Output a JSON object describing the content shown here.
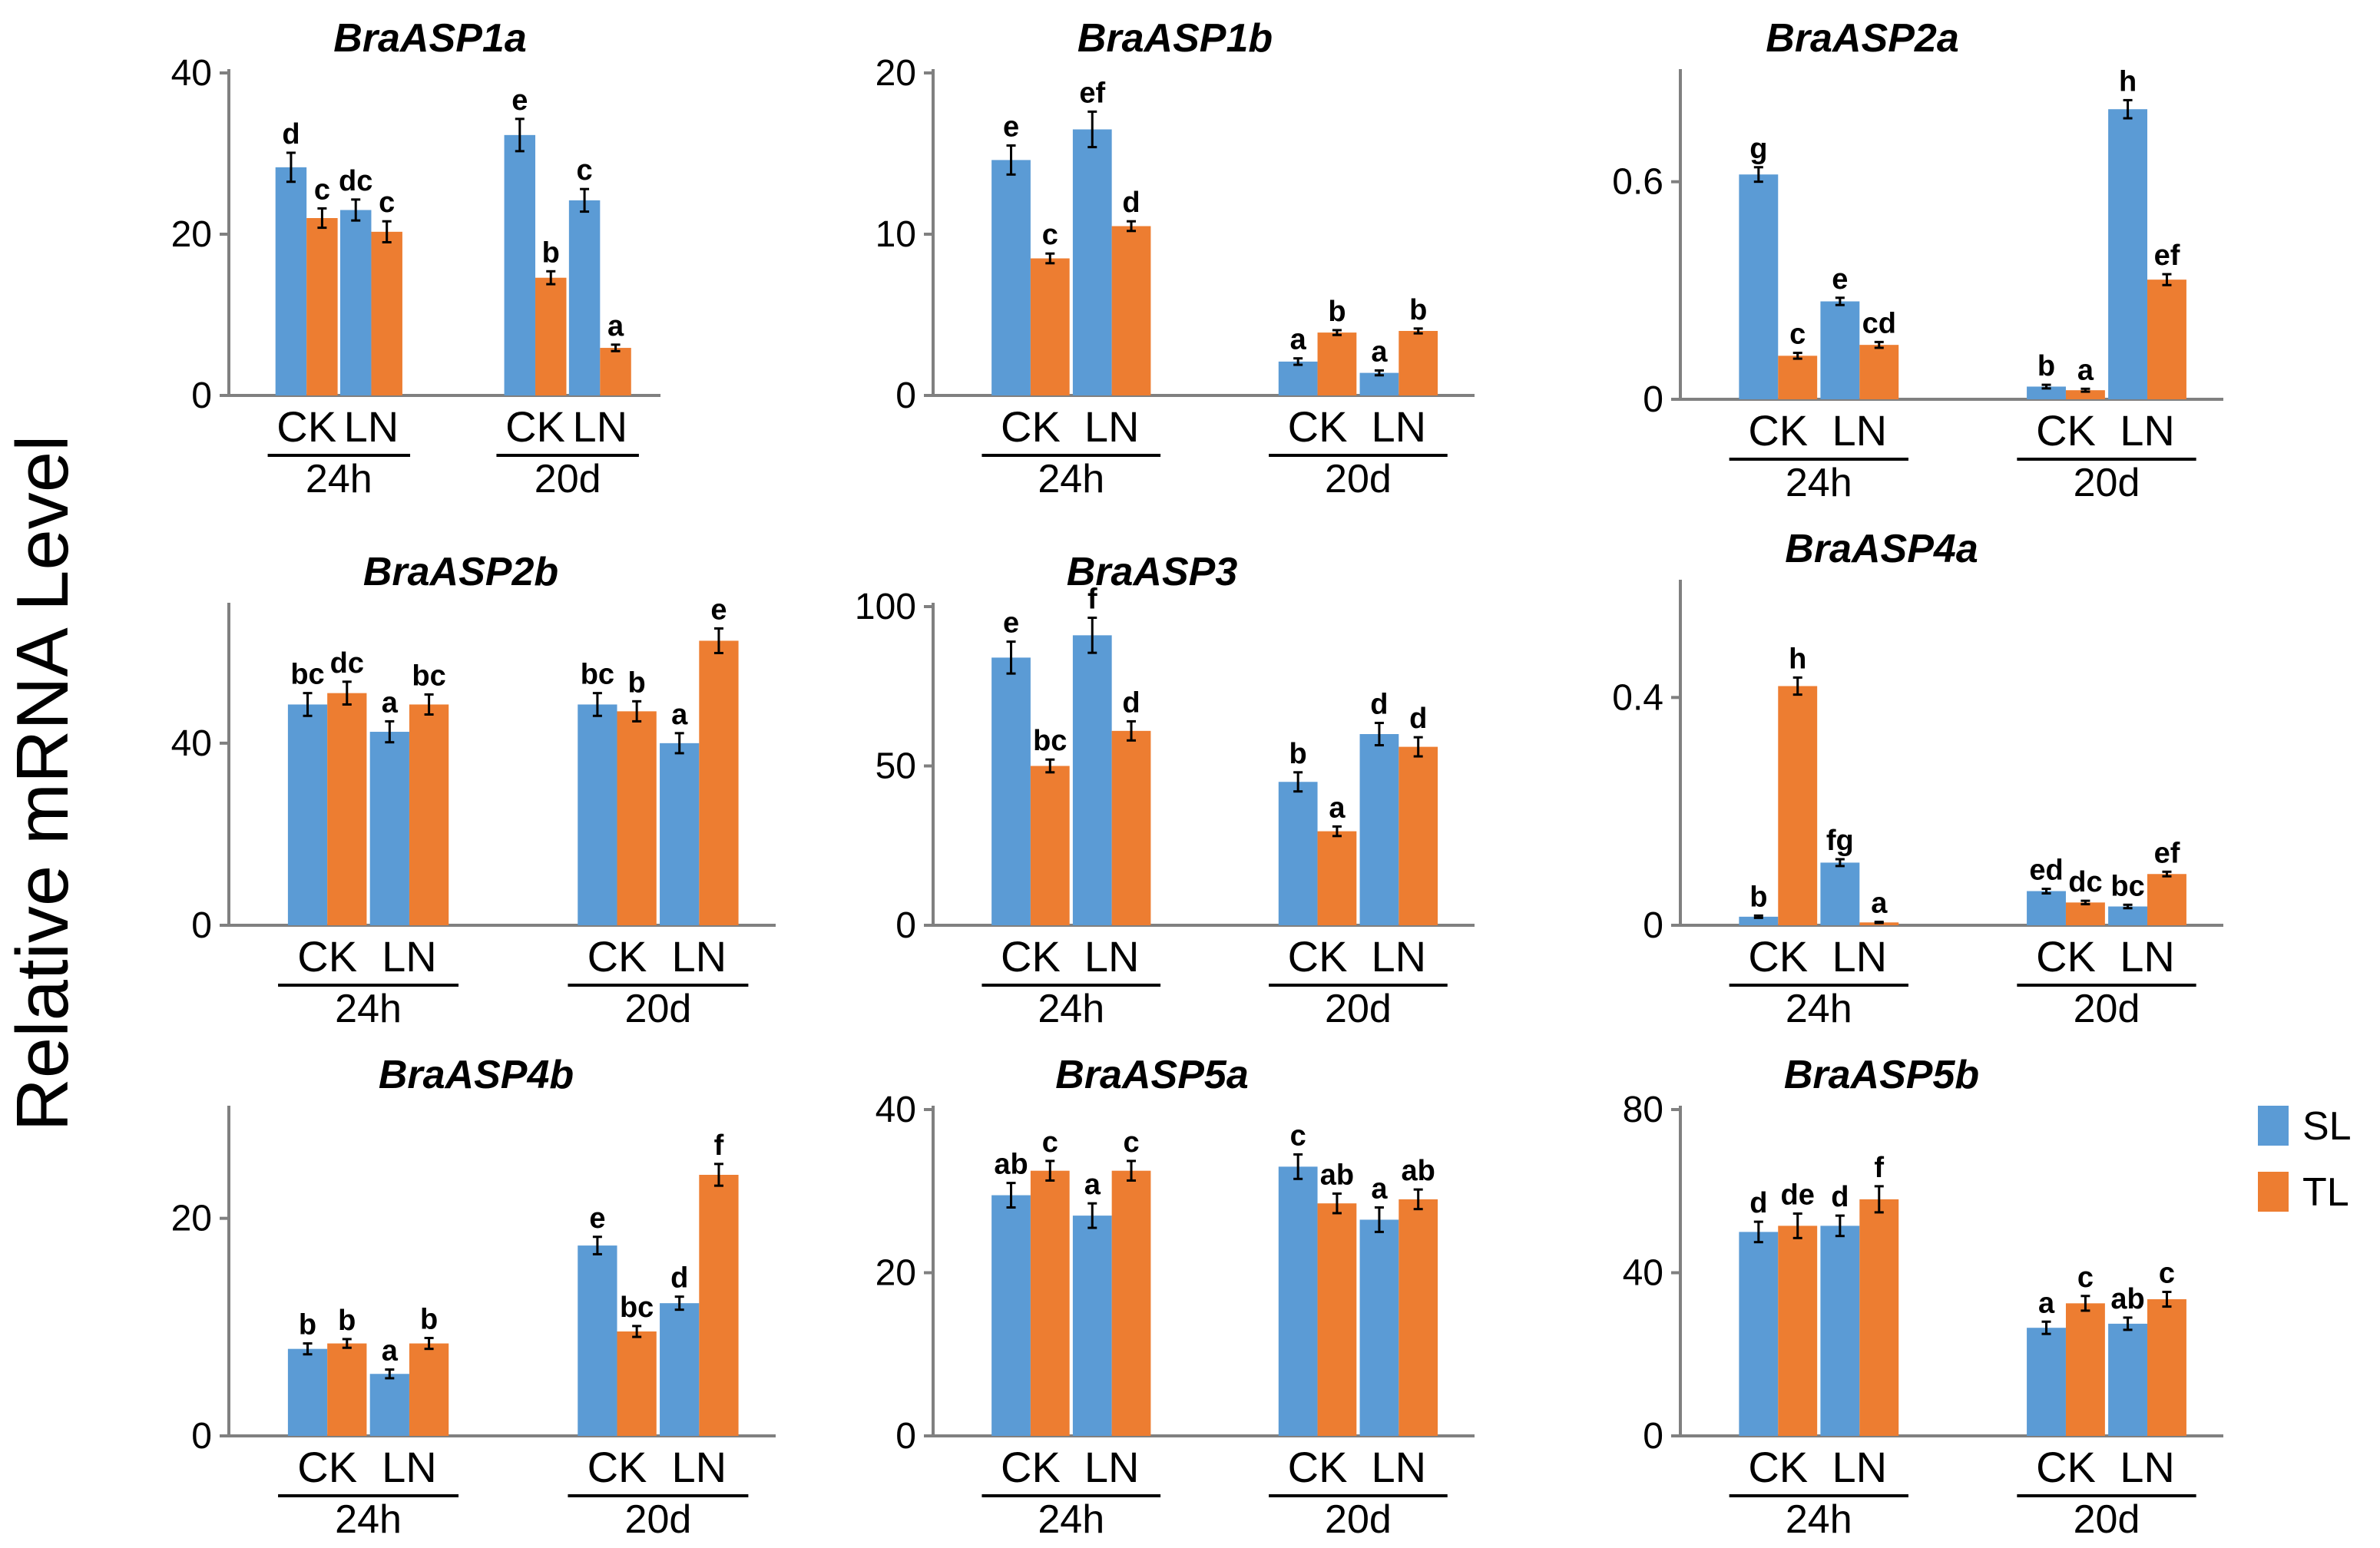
{
  "y_axis_title": "Relative mRNA Level",
  "legend": [
    {
      "label": "SL",
      "color": "#5B9BD5"
    },
    {
      "label": "TL",
      "color": "#ED7D31"
    }
  ],
  "colors": {
    "SL": "#5B9BD5",
    "TL": "#ED7D31",
    "axis": "#808080",
    "error": "#000000"
  },
  "chart_data": [
    {
      "type": "bar",
      "title": "BraASP1a",
      "yticks": [
        0,
        20,
        40
      ],
      "ylim": [
        0,
        40
      ],
      "categories": [
        "CK",
        "LN",
        "CK",
        "LN"
      ],
      "time_groups": [
        "24h",
        "20d"
      ],
      "series": [
        {
          "name": "SL",
          "values": [
            28.3,
            23.0,
            32.3,
            24.2
          ],
          "errors": [
            1.8,
            1.3,
            2.0,
            1.4
          ],
          "letters": [
            "d",
            "dc",
            "e",
            "c"
          ]
        },
        {
          "name": "TL",
          "values": [
            22.0,
            20.3,
            14.6,
            5.9
          ],
          "errors": [
            1.2,
            1.3,
            0.8,
            0.4
          ],
          "letters": [
            "c",
            "c",
            "b",
            "a"
          ]
        }
      ]
    },
    {
      "type": "bar",
      "title": "BraASP1b",
      "yticks": [
        0,
        10,
        20
      ],
      "ylim": [
        0,
        20
      ],
      "categories": [
        "CK",
        "LN",
        "CK",
        "LN"
      ],
      "time_groups": [
        "24h",
        "20d"
      ],
      "series": [
        {
          "name": "SL",
          "values": [
            14.6,
            16.5,
            2.1,
            1.4
          ],
          "errors": [
            0.9,
            1.1,
            0.2,
            0.15
          ],
          "letters": [
            "e",
            "ef",
            "a",
            "a"
          ]
        },
        {
          "name": "TL",
          "values": [
            8.5,
            10.5,
            3.9,
            4.0
          ],
          "errors": [
            0.3,
            0.3,
            0.15,
            0.15
          ],
          "letters": [
            "c",
            "d",
            "b",
            "b"
          ]
        }
      ]
    },
    {
      "type": "bar",
      "title": "BraASP2a",
      "yticks": [
        0,
        0.6
      ],
      "ylim": [
        0,
        0.9
      ],
      "categories": [
        "CK",
        "LN",
        "CK",
        "LN"
      ],
      "time_groups": [
        "24h",
        "20d"
      ],
      "series": [
        {
          "name": "SL",
          "values": [
            0.62,
            0.27,
            0.035,
            0.8
          ],
          "errors": [
            0.02,
            0.01,
            0.005,
            0.025
          ],
          "letters": [
            "g",
            "e",
            "b",
            "h"
          ]
        },
        {
          "name": "TL",
          "values": [
            0.12,
            0.15,
            0.025,
            0.33
          ],
          "errors": [
            0.008,
            0.008,
            0.004,
            0.015
          ],
          "letters": [
            "c",
            "cd",
            "a",
            "ef"
          ]
        }
      ]
    },
    {
      "type": "bar",
      "title": "BraASP2b",
      "yticks": [
        0,
        40
      ],
      "ylim": [
        0,
        70
      ],
      "categories": [
        "CK",
        "LN",
        "CK",
        "LN"
      ],
      "time_groups": [
        "24h",
        "20d"
      ],
      "series": [
        {
          "name": "SL",
          "values": [
            48.5,
            42.5,
            48.5,
            40.0
          ],
          "errors": [
            2.5,
            2.3,
            2.5,
            2.2
          ],
          "letters": [
            "bc",
            "a",
            "bc",
            "a"
          ]
        },
        {
          "name": "TL",
          "values": [
            51.0,
            48.5,
            47.0,
            62.5
          ],
          "errors": [
            2.5,
            2.2,
            2.2,
            2.7
          ],
          "letters": [
            "dc",
            "bc",
            "b",
            "e"
          ]
        }
      ]
    },
    {
      "type": "bar",
      "title": "BraASP3",
      "yticks": [
        0,
        50,
        100
      ],
      "ylim": [
        0,
        100
      ],
      "categories": [
        "CK",
        "LN",
        "CK",
        "LN"
      ],
      "time_groups": [
        "24h",
        "20d"
      ],
      "series": [
        {
          "name": "SL",
          "values": [
            84.0,
            91.0,
            45.0,
            60.0
          ],
          "errors": [
            5.0,
            5.5,
            3.0,
            3.5
          ],
          "letters": [
            "e",
            "f",
            "b",
            "d"
          ]
        },
        {
          "name": "TL",
          "values": [
            50.0,
            61.0,
            29.5,
            56.0
          ],
          "errors": [
            2.0,
            3.0,
            1.5,
            3.0
          ],
          "letters": [
            "bc",
            "d",
            "a",
            "d"
          ]
        }
      ]
    },
    {
      "type": "bar",
      "title": "BraASP4a",
      "yticks": [
        0,
        0.4
      ],
      "ylim": [
        0,
        0.6
      ],
      "categories": [
        "CK",
        "LN",
        "CK",
        "LN"
      ],
      "time_groups": [
        "24h",
        "20d"
      ],
      "series": [
        {
          "name": "SL",
          "values": [
            0.015,
            0.11,
            0.06,
            0.033
          ],
          "errors": [
            0.002,
            0.006,
            0.004,
            0.003
          ],
          "letters": [
            "b",
            "fg",
            "ed",
            "bc"
          ]
        },
        {
          "name": "TL",
          "values": [
            0.42,
            0.005,
            0.04,
            0.09
          ],
          "errors": [
            0.015,
            0.001,
            0.003,
            0.004
          ],
          "letters": [
            "h",
            "a",
            "dc",
            "ef"
          ]
        }
      ]
    },
    {
      "type": "bar",
      "title": "BraASP4b",
      "yticks": [
        0,
        20
      ],
      "ylim": [
        0,
        30
      ],
      "categories": [
        "CK",
        "LN",
        "CK",
        "LN"
      ],
      "time_groups": [
        "24h",
        "20d"
      ],
      "series": [
        {
          "name": "SL",
          "values": [
            8.0,
            5.7,
            17.5,
            12.2
          ],
          "errors": [
            0.5,
            0.4,
            0.8,
            0.6
          ],
          "letters": [
            "b",
            "a",
            "e",
            "d"
          ]
        },
        {
          "name": "TL",
          "values": [
            8.5,
            8.5,
            9.6,
            24.0
          ],
          "errors": [
            0.4,
            0.5,
            0.5,
            1.0
          ],
          "letters": [
            "b",
            "b",
            "bc",
            "f"
          ]
        }
      ]
    },
    {
      "type": "bar",
      "title": "BraASP5a",
      "yticks": [
        0,
        20,
        40
      ],
      "ylim": [
        0,
        40
      ],
      "categories": [
        "CK",
        "LN",
        "CK",
        "LN"
      ],
      "time_groups": [
        "24h",
        "20d"
      ],
      "series": [
        {
          "name": "SL",
          "values": [
            29.5,
            27.0,
            33.0,
            26.5
          ],
          "errors": [
            1.5,
            1.5,
            1.5,
            1.5
          ],
          "letters": [
            "ab",
            "a",
            "c",
            "a"
          ]
        },
        {
          "name": "TL",
          "values": [
            32.5,
            32.5,
            28.5,
            29.0
          ],
          "errors": [
            1.2,
            1.2,
            1.2,
            1.2
          ],
          "letters": [
            "c",
            "c",
            "ab",
            "ab"
          ]
        }
      ]
    },
    {
      "type": "bar",
      "title": "BraASP5b",
      "yticks": [
        0,
        40,
        80
      ],
      "ylim": [
        0,
        80
      ],
      "categories": [
        "CK",
        "LN",
        "CK",
        "LN"
      ],
      "time_groups": [
        "24h",
        "20d"
      ],
      "series": [
        {
          "name": "SL",
          "values": [
            50.0,
            51.5,
            26.5,
            27.5
          ],
          "errors": [
            2.5,
            2.5,
            1.5,
            1.5
          ],
          "letters": [
            "d",
            "d",
            "a",
            "ab"
          ]
        },
        {
          "name": "TL",
          "values": [
            51.5,
            58.0,
            32.5,
            33.5
          ],
          "errors": [
            3.0,
            3.2,
            1.8,
            1.8
          ],
          "letters": [
            "de",
            "f",
            "c",
            "c"
          ]
        }
      ]
    }
  ]
}
